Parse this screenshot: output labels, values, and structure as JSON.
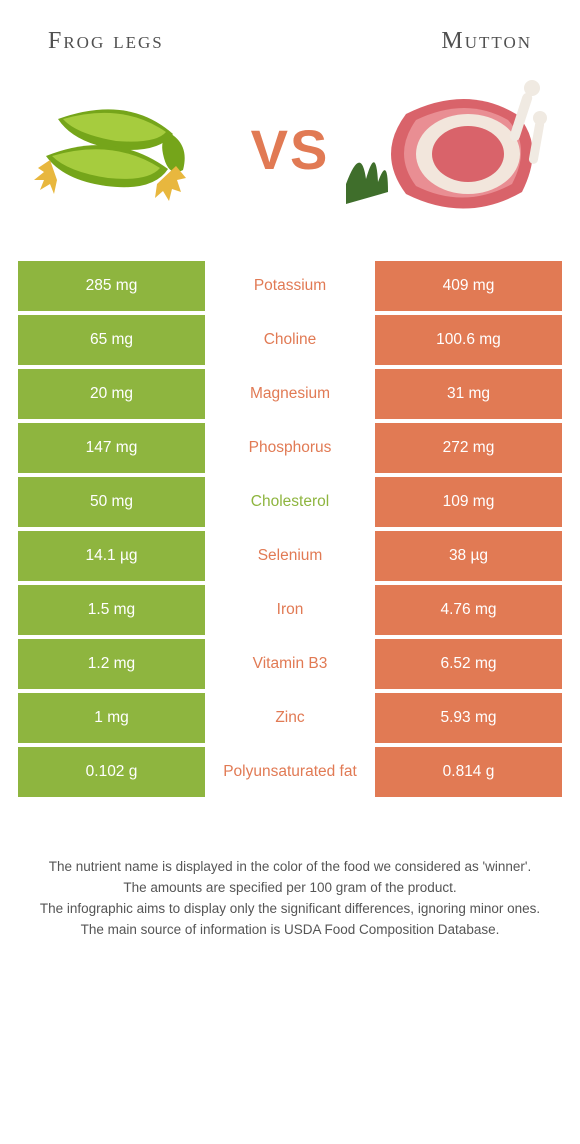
{
  "colors": {
    "left": "#8eb53f",
    "right": "#e17a54",
    "mid_text_winner_left": "#8eb53f",
    "mid_text_winner_right": "#e17a54",
    "vs": "#e17a54",
    "heading": "#505050",
    "page_bg": "#ffffff",
    "footnote": "#555555"
  },
  "headings": {
    "left": "Frog legs",
    "right": "Mutton"
  },
  "vs_label": "VS",
  "rows": [
    {
      "label": "Potassium",
      "left": "285 mg",
      "right": "409 mg",
      "winner": "right"
    },
    {
      "label": "Choline",
      "left": "65 mg",
      "right": "100.6 mg",
      "winner": "right"
    },
    {
      "label": "Magnesium",
      "left": "20 mg",
      "right": "31 mg",
      "winner": "right"
    },
    {
      "label": "Phosphorus",
      "left": "147 mg",
      "right": "272 mg",
      "winner": "right"
    },
    {
      "label": "Cholesterol",
      "left": "50 mg",
      "right": "109 mg",
      "winner": "left"
    },
    {
      "label": "Selenium",
      "left": "14.1 µg",
      "right": "38 µg",
      "winner": "right"
    },
    {
      "label": "Iron",
      "left": "1.5 mg",
      "right": "4.76 mg",
      "winner": "right"
    },
    {
      "label": "Vitamin B3",
      "left": "1.2 mg",
      "right": "6.52 mg",
      "winner": "right"
    },
    {
      "label": "Zinc",
      "left": "1 mg",
      "right": "5.93 mg",
      "winner": "right"
    },
    {
      "label": "Polyunsaturated fat",
      "left": "0.102 g",
      "right": "0.814 g",
      "winner": "right"
    }
  ],
  "footnotes": [
    "The nutrient name is displayed in the color of the food we considered as 'winner'.",
    "The amounts are specified per 100 gram of the product.",
    "The infographic aims to display only the significant differences, ignoring minor ones.",
    "The main source of information is USDA Food Composition Database."
  ],
  "frog_art": {
    "body": "#75a51a",
    "highlight": "#a6cc3e",
    "foot": "#e8b73e"
  },
  "mutton_art": {
    "meat": "#d9636a",
    "meat_light": "#e98e93",
    "fat": "#f2e6dc",
    "bone": "#f0eae2",
    "greens": "#3f6e2b"
  }
}
